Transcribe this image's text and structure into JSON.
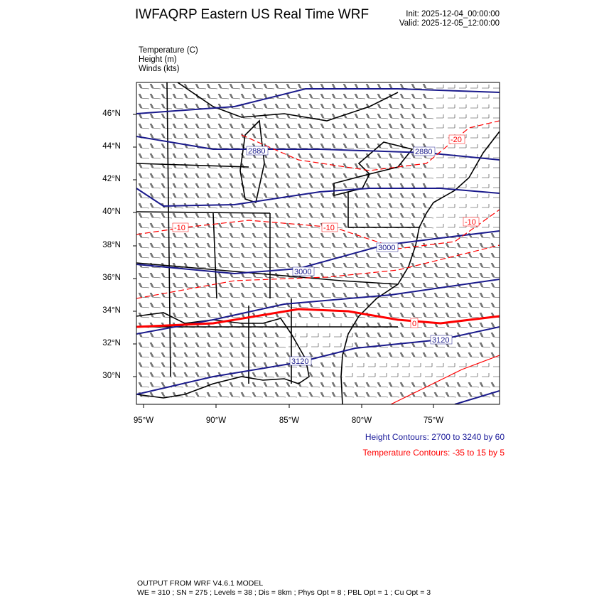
{
  "header": {
    "title": "IWFAQRP Eastern US Real Time WRF",
    "init": "Init: 2025-12-04_00:00:00",
    "valid": "Valid: 2025-12-05_12:00:00"
  },
  "fields": [
    "Temperature   (C)",
    "Height   (m)",
    "Winds   (kts)"
  ],
  "map": {
    "lat_labels": [
      "46°N",
      "44°N",
      "42°N",
      "40°N",
      "38°N",
      "36°N",
      "34°N",
      "32°N",
      "30°N"
    ],
    "lon_labels": [
      "95°W",
      "90°W",
      "85°W",
      "80°W",
      "75°W"
    ],
    "height_contour_labels": [
      "2880",
      "2880",
      "3000",
      "3000",
      "3120",
      "3120"
    ],
    "temperature_contour_labels": [
      "-20",
      "-10",
      "-10",
      "-10",
      "0"
    ],
    "colors": {
      "height": "#1a1a8c",
      "temperature": "#ff0000",
      "map_lines": "#000000"
    }
  },
  "legend": {
    "height": "Height Contours: 2700 to 3240 by 60",
    "temperature": "Temperature Contours: -35 to 15 by 5"
  },
  "footer": {
    "line1": "OUTPUT FROM WRF V4.6.1 MODEL",
    "line2": "WE = 310 ; SN = 275 ; Levels = 38 ; Dis = 8km ; Phys Opt = 8 ; PBL Opt = 1 ; Cu Opt = 3"
  }
}
